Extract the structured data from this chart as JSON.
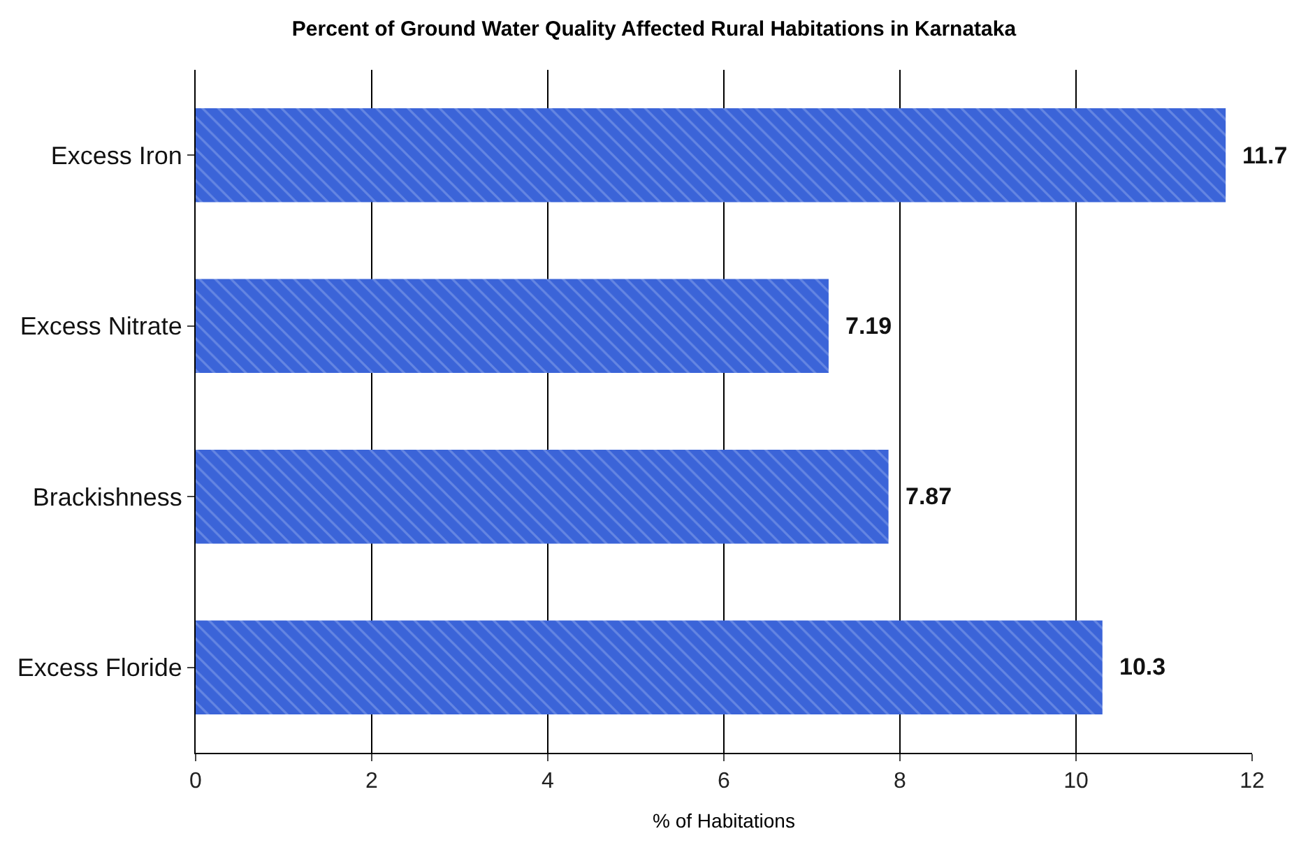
{
  "chart_data": {
    "type": "bar",
    "orientation": "horizontal",
    "title": "Percent of Ground Water Quality Affected Rural Habitations in Karnataka",
    "xlabel": "% of Habitations",
    "categories": [
      "Excess Iron",
      "Excess Nitrate",
      "Brackishness",
      "Excess Floride"
    ],
    "values": [
      11.7,
      7.19,
      7.87,
      10.3
    ],
    "color": "#3b64d8",
    "xlim": [
      0,
      12
    ],
    "xticks": [
      0,
      2,
      4,
      6,
      8,
      10,
      12
    ],
    "grid": "x",
    "data_labels": true
  }
}
